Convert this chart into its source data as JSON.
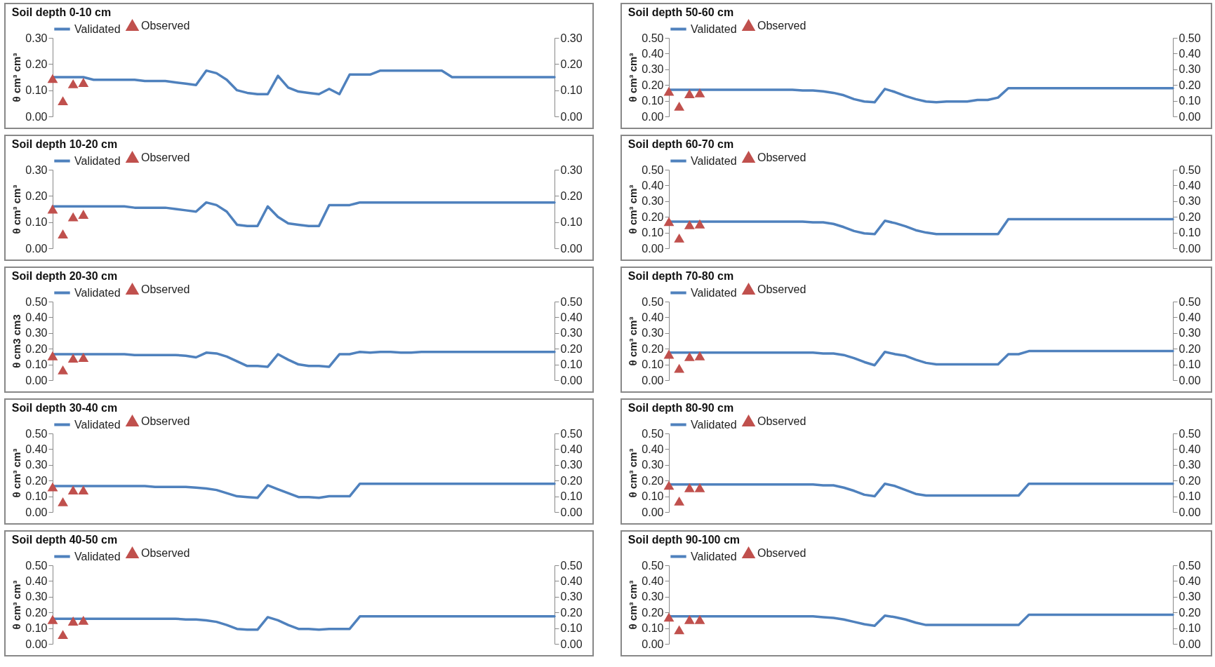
{
  "chart_data": [
    {
      "type": "line",
      "title": "Soil depth 0-10 cm",
      "ylabel": "θ cm³ cm³",
      "legend": "top",
      "categories": [
        null,
        null,
        null,
        null,
        null,
        null,
        null,
        null,
        null,
        null,
        null,
        null,
        null,
        null,
        null,
        null,
        null,
        null,
        null,
        null,
        null,
        null,
        null,
        null,
        null,
        null,
        null,
        null,
        null,
        null,
        null,
        null,
        null,
        null,
        null,
        null,
        null,
        null,
        null,
        null,
        null,
        null,
        null,
        null,
        null,
        null,
        null,
        null,
        null,
        null
      ],
      "ylim": [
        0,
        0.3
      ],
      "yticks": [
        {
          "value": 0,
          "label": "0.00"
        },
        {
          "value": 0.1,
          "label": "0.10"
        },
        {
          "value": 0.2,
          "label": "0.20"
        },
        {
          "value": 0.3,
          "label": "0.30"
        }
      ],
      "y2lim": [
        0,
        0.3
      ],
      "y2ticks": [
        {
          "value": 0,
          "label": "0.00"
        },
        {
          "value": 0.1,
          "label": "0.10"
        },
        {
          "value": 0.2,
          "label": "0.20"
        },
        {
          "value": 0.3,
          "label": "0.30"
        }
      ],
      "series": [
        {
          "name": "Validated",
          "type": "line",
          "color": "#4f81bd",
          "values": [
            0.15,
            0.15,
            0.15,
            0.15,
            0.14,
            0.14,
            0.14,
            0.14,
            0.14,
            0.135,
            0.135,
            0.135,
            0.13,
            0.125,
            0.12,
            0.175,
            0.165,
            0.14,
            0.1,
            0.09,
            0.085,
            0.085,
            0.155,
            0.11,
            0.095,
            0.09,
            0.085,
            0.105,
            0.085,
            0.16,
            0.16,
            0.16,
            0.175,
            0.175,
            0.175,
            0.175,
            0.175,
            0.175,
            0.175,
            0.15,
            0.15,
            0.15,
            0.15,
            0.15,
            0.15,
            0.15,
            0.15,
            0.15,
            0.15,
            0.15
          ]
        },
        {
          "name": "Observed",
          "type": "scatter",
          "marker": "triangle",
          "axis": "y2",
          "color": "#c0504d",
          "values": [
            0.145,
            0.06,
            0.125,
            0.13,
            null,
            null,
            null,
            null,
            null,
            null,
            null,
            null,
            null,
            null,
            null,
            null,
            null,
            null,
            null,
            null,
            null,
            null,
            null,
            null,
            null,
            null,
            null,
            null,
            null,
            null,
            null,
            null,
            null,
            null,
            null,
            null,
            null,
            null,
            null,
            null,
            null,
            null,
            null,
            null,
            null,
            null,
            null,
            null,
            null,
            null
          ]
        }
      ]
    },
    {
      "type": "line",
      "title": "Soil depth 10-20 cm",
      "ylabel": "θ cm³ cm³",
      "legend": "top",
      "categories": [
        null,
        null,
        null,
        null,
        null,
        null,
        null,
        null,
        null,
        null,
        null,
        null,
        null,
        null,
        null,
        null,
        null,
        null,
        null,
        null,
        null,
        null,
        null,
        null,
        null,
        null,
        null,
        null,
        null,
        null,
        null,
        null,
        null,
        null,
        null,
        null,
        null,
        null,
        null,
        null,
        null,
        null,
        null,
        null,
        null,
        null,
        null,
        null,
        null,
        null
      ],
      "ylim": [
        0,
        0.3
      ],
      "yticks": [
        {
          "value": 0,
          "label": "0.00"
        },
        {
          "value": 0.1,
          "label": "0.10"
        },
        {
          "value": 0.2,
          "label": "0.20"
        },
        {
          "value": 0.3,
          "label": "0.30"
        }
      ],
      "y2lim": [
        0,
        0.3
      ],
      "y2ticks": [
        {
          "value": 0,
          "label": "0.00"
        },
        {
          "value": 0.1,
          "label": "0.10"
        },
        {
          "value": 0.2,
          "label": "0.20"
        },
        {
          "value": 0.3,
          "label": "0.30"
        }
      ],
      "series": [
        {
          "name": "Validated",
          "type": "line",
          "color": "#4f81bd",
          "values": [
            0.16,
            0.16,
            0.16,
            0.16,
            0.16,
            0.16,
            0.16,
            0.16,
            0.155,
            0.155,
            0.155,
            0.155,
            0.15,
            0.145,
            0.14,
            0.175,
            0.165,
            0.14,
            0.09,
            0.085,
            0.085,
            0.16,
            0.12,
            0.095,
            0.09,
            0.085,
            0.085,
            0.165,
            0.165,
            0.165,
            0.175,
            0.175,
            0.175,
            0.175,
            0.175,
            0.175,
            0.175,
            0.175,
            0.175,
            0.175,
            0.175,
            0.175,
            0.175,
            0.175,
            0.175,
            0.175,
            0.175,
            0.175,
            0.175,
            0.175
          ]
        },
        {
          "name": "Observed",
          "type": "scatter",
          "marker": "triangle",
          "axis": "y2",
          "color": "#c0504d",
          "values": [
            0.15,
            0.055,
            0.12,
            0.13,
            null,
            null,
            null,
            null,
            null,
            null,
            null,
            null,
            null,
            null,
            null,
            null,
            null,
            null,
            null,
            null,
            null,
            null,
            null,
            null,
            null,
            null,
            null,
            null,
            null,
            null,
            null,
            null,
            null,
            null,
            null,
            null,
            null,
            null,
            null,
            null,
            null,
            null,
            null,
            null,
            null,
            null,
            null,
            null,
            null,
            null
          ]
        }
      ]
    },
    {
      "type": "line",
      "title": "Soil depth 20-30 cm",
      "ylabel": "θ cm3 cm3",
      "legend": "top",
      "categories": [
        null,
        null,
        null,
        null,
        null,
        null,
        null,
        null,
        null,
        null,
        null,
        null,
        null,
        null,
        null,
        null,
        null,
        null,
        null,
        null,
        null,
        null,
        null,
        null,
        null,
        null,
        null,
        null,
        null,
        null,
        null,
        null,
        null,
        null,
        null,
        null,
        null,
        null,
        null,
        null,
        null,
        null,
        null,
        null,
        null,
        null,
        null,
        null,
        null,
        null
      ],
      "ylim": [
        0,
        0.5
      ],
      "yticks": [
        {
          "value": 0,
          "label": "0.00"
        },
        {
          "value": 0.1,
          "label": "0.10"
        },
        {
          "value": 0.2,
          "label": "0.20"
        },
        {
          "value": 0.3,
          "label": "0.30"
        },
        {
          "value": 0.4,
          "label": "0.40"
        },
        {
          "value": 0.5,
          "label": "0.50"
        }
      ],
      "y2lim": [
        0,
        0.5
      ],
      "y2ticks": [
        {
          "value": 0,
          "label": "0.00"
        },
        {
          "value": 0.1,
          "label": "0.10"
        },
        {
          "value": 0.2,
          "label": "0.20"
        },
        {
          "value": 0.3,
          "label": "0.30"
        },
        {
          "value": 0.4,
          "label": "0.40"
        },
        {
          "value": 0.5,
          "label": "0.50"
        }
      ],
      "series": [
        {
          "name": "Validated",
          "type": "line",
          "color": "#4f81bd",
          "values": [
            0.165,
            0.165,
            0.165,
            0.165,
            0.165,
            0.165,
            0.165,
            0.165,
            0.16,
            0.16,
            0.16,
            0.16,
            0.16,
            0.155,
            0.145,
            0.175,
            0.17,
            0.15,
            0.12,
            0.09,
            0.09,
            0.085,
            0.165,
            0.13,
            0.1,
            0.09,
            0.09,
            0.085,
            0.165,
            0.165,
            0.18,
            0.175,
            0.18,
            0.18,
            0.175,
            0.175,
            0.18,
            0.18,
            0.18,
            0.18,
            0.18,
            0.18,
            0.18,
            0.18,
            0.18,
            0.18,
            0.18,
            0.18,
            0.18,
            0.18
          ]
        },
        {
          "name": "Observed",
          "type": "scatter",
          "marker": "triangle",
          "axis": "y2",
          "color": "#c0504d",
          "values": [
            0.155,
            0.065,
            0.14,
            0.145,
            null,
            null,
            null,
            null,
            null,
            null,
            null,
            null,
            null,
            null,
            null,
            null,
            null,
            null,
            null,
            null,
            null,
            null,
            null,
            null,
            null,
            null,
            null,
            null,
            null,
            null,
            null,
            null,
            null,
            null,
            null,
            null,
            null,
            null,
            null,
            null,
            null,
            null,
            null,
            null,
            null,
            null,
            null,
            null,
            null,
            null
          ]
        }
      ]
    },
    {
      "type": "line",
      "title": "Soil depth 30-40 cm",
      "ylabel": "θ cm³ cm³",
      "legend": "top",
      "categories": [
        null,
        null,
        null,
        null,
        null,
        null,
        null,
        null,
        null,
        null,
        null,
        null,
        null,
        null,
        null,
        null,
        null,
        null,
        null,
        null,
        null,
        null,
        null,
        null,
        null,
        null,
        null,
        null,
        null,
        null,
        null,
        null,
        null,
        null,
        null,
        null,
        null,
        null,
        null,
        null,
        null,
        null,
        null,
        null,
        null,
        null,
        null,
        null,
        null,
        null
      ],
      "ylim": [
        0,
        0.5
      ],
      "yticks": [
        {
          "value": 0,
          "label": "0.00"
        },
        {
          "value": 0.1,
          "label": "0.10"
        },
        {
          "value": 0.2,
          "label": "0.20"
        },
        {
          "value": 0.3,
          "label": "0.30"
        },
        {
          "value": 0.4,
          "label": "0.40"
        },
        {
          "value": 0.5,
          "label": "0.50"
        }
      ],
      "y2lim": [
        0,
        0.5
      ],
      "y2ticks": [
        {
          "value": 0,
          "label": "0.00"
        },
        {
          "value": 0.1,
          "label": "0.10"
        },
        {
          "value": 0.2,
          "label": "0.20"
        },
        {
          "value": 0.3,
          "label": "0.30"
        },
        {
          "value": 0.4,
          "label": "0.40"
        },
        {
          "value": 0.5,
          "label": "0.50"
        }
      ],
      "series": [
        {
          "name": "Validated",
          "type": "line",
          "color": "#4f81bd",
          "values": [
            0.165,
            0.165,
            0.165,
            0.165,
            0.165,
            0.165,
            0.165,
            0.165,
            0.165,
            0.165,
            0.16,
            0.16,
            0.16,
            0.16,
            0.155,
            0.15,
            0.14,
            0.12,
            0.1,
            0.095,
            0.09,
            0.17,
            0.145,
            0.12,
            0.095,
            0.095,
            0.09,
            0.1,
            0.1,
            0.1,
            0.18,
            0.18,
            0.18,
            0.18,
            0.18,
            0.18,
            0.18,
            0.18,
            0.18,
            0.18,
            0.18,
            0.18,
            0.18,
            0.18,
            0.18,
            0.18,
            0.18,
            0.18,
            0.18,
            0.18
          ]
        },
        {
          "name": "Observed",
          "type": "scatter",
          "marker": "triangle",
          "axis": "y2",
          "color": "#c0504d",
          "values": [
            0.16,
            0.065,
            0.14,
            0.14,
            null,
            null,
            null,
            null,
            null,
            null,
            null,
            null,
            null,
            null,
            null,
            null,
            null,
            null,
            null,
            null,
            null,
            null,
            null,
            null,
            null,
            null,
            null,
            null,
            null,
            null,
            null,
            null,
            null,
            null,
            null,
            null,
            null,
            null,
            null,
            null,
            null,
            null,
            null,
            null,
            null,
            null,
            null,
            null,
            null,
            null
          ]
        }
      ]
    },
    {
      "type": "line",
      "title": "Soil depth 40-50 cm",
      "ylabel": "θ cm³ cm³",
      "legend": "top",
      "categories": [
        null,
        null,
        null,
        null,
        null,
        null,
        null,
        null,
        null,
        null,
        null,
        null,
        null,
        null,
        null,
        null,
        null,
        null,
        null,
        null,
        null,
        null,
        null,
        null,
        null,
        null,
        null,
        null,
        null,
        null,
        null,
        null,
        null,
        null,
        null,
        null,
        null,
        null,
        null,
        null,
        null,
        null,
        null,
        null,
        null,
        null,
        null,
        null,
        null,
        null
      ],
      "ylim": [
        0,
        0.5
      ],
      "yticks": [
        {
          "value": 0,
          "label": "0.00"
        },
        {
          "value": 0.1,
          "label": "0.10"
        },
        {
          "value": 0.2,
          "label": "0.20"
        },
        {
          "value": 0.3,
          "label": "0.30"
        },
        {
          "value": 0.4,
          "label": "0.40"
        },
        {
          "value": 0.5,
          "label": "0.50"
        }
      ],
      "y2lim": [
        0,
        0.5
      ],
      "y2ticks": [
        {
          "value": 0,
          "label": "0.00"
        },
        {
          "value": 0.1,
          "label": "0.10"
        },
        {
          "value": 0.2,
          "label": "0.20"
        },
        {
          "value": 0.3,
          "label": "0.30"
        },
        {
          "value": 0.4,
          "label": "0.40"
        },
        {
          "value": 0.5,
          "label": "0.50"
        }
      ],
      "series": [
        {
          "name": "Validated",
          "type": "line",
          "color": "#4f81bd",
          "values": [
            0.16,
            0.16,
            0.16,
            0.16,
            0.16,
            0.16,
            0.16,
            0.16,
            0.16,
            0.16,
            0.16,
            0.16,
            0.16,
            0.155,
            0.155,
            0.15,
            0.14,
            0.12,
            0.095,
            0.09,
            0.09,
            0.17,
            0.15,
            0.12,
            0.095,
            0.095,
            0.09,
            0.095,
            0.095,
            0.095,
            0.175,
            0.175,
            0.175,
            0.175,
            0.175,
            0.175,
            0.175,
            0.175,
            0.175,
            0.175,
            0.175,
            0.175,
            0.175,
            0.175,
            0.175,
            0.175,
            0.175,
            0.175,
            0.175,
            0.175
          ]
        },
        {
          "name": "Observed",
          "type": "scatter",
          "marker": "triangle",
          "axis": "y2",
          "color": "#c0504d",
          "values": [
            0.155,
            0.06,
            0.145,
            0.15,
            null,
            null,
            null,
            null,
            null,
            null,
            null,
            null,
            null,
            null,
            null,
            null,
            null,
            null,
            null,
            null,
            null,
            null,
            null,
            null,
            null,
            null,
            null,
            null,
            null,
            null,
            null,
            null,
            null,
            null,
            null,
            null,
            null,
            null,
            null,
            null,
            null,
            null,
            null,
            null,
            null,
            null,
            null,
            null,
            null,
            null
          ]
        }
      ]
    },
    {
      "type": "line",
      "title": "Soil depth 50-60 cm",
      "ylabel": "θ cm³ cm³",
      "legend": "top",
      "categories": [
        null,
        null,
        null,
        null,
        null,
        null,
        null,
        null,
        null,
        null,
        null,
        null,
        null,
        null,
        null,
        null,
        null,
        null,
        null,
        null,
        null,
        null,
        null,
        null,
        null,
        null,
        null,
        null,
        null,
        null,
        null,
        null,
        null,
        null,
        null,
        null,
        null,
        null,
        null,
        null,
        null,
        null,
        null,
        null,
        null,
        null,
        null,
        null,
        null,
        null
      ],
      "ylim": [
        0,
        0.5
      ],
      "yticks": [
        {
          "value": 0,
          "label": "0.00"
        },
        {
          "value": 0.1,
          "label": "0.10"
        },
        {
          "value": 0.2,
          "label": "0.20"
        },
        {
          "value": 0.3,
          "label": "0.30"
        },
        {
          "value": 0.4,
          "label": "0.40"
        },
        {
          "value": 0.5,
          "label": "0.50"
        }
      ],
      "y2lim": [
        0,
        0.5
      ],
      "y2ticks": [
        {
          "value": 0,
          "label": "0.00"
        },
        {
          "value": 0.1,
          "label": "0.10"
        },
        {
          "value": 0.2,
          "label": "0.20"
        },
        {
          "value": 0.3,
          "label": "0.30"
        },
        {
          "value": 0.4,
          "label": "0.40"
        },
        {
          "value": 0.5,
          "label": "0.50"
        }
      ],
      "series": [
        {
          "name": "Validated",
          "type": "line",
          "color": "#4f81bd",
          "values": [
            0.17,
            0.17,
            0.17,
            0.17,
            0.17,
            0.17,
            0.17,
            0.17,
            0.17,
            0.17,
            0.17,
            0.17,
            0.17,
            0.165,
            0.165,
            0.16,
            0.15,
            0.135,
            0.11,
            0.095,
            0.09,
            0.175,
            0.155,
            0.13,
            0.11,
            0.095,
            0.09,
            0.095,
            0.095,
            0.095,
            0.105,
            0.105,
            0.12,
            0.18,
            0.18,
            0.18,
            0.18,
            0.18,
            0.18,
            0.18,
            0.18,
            0.18,
            0.18,
            0.18,
            0.18,
            0.18,
            0.18,
            0.18,
            0.18,
            0.18
          ]
        },
        {
          "name": "Observed",
          "type": "scatter",
          "marker": "triangle",
          "axis": "y2",
          "color": "#c0504d",
          "values": [
            0.16,
            0.065,
            0.145,
            0.15,
            null,
            null,
            null,
            null,
            null,
            null,
            null,
            null,
            null,
            null,
            null,
            null,
            null,
            null,
            null,
            null,
            null,
            null,
            null,
            null,
            null,
            null,
            null,
            null,
            null,
            null,
            null,
            null,
            null,
            null,
            null,
            null,
            null,
            null,
            null,
            null,
            null,
            null,
            null,
            null,
            null,
            null,
            null,
            null,
            null,
            null
          ]
        }
      ]
    },
    {
      "type": "line",
      "title": "Soil depth 60-70 cm",
      "ylabel": "θ cm³ cm³",
      "legend": "top",
      "categories": [
        null,
        null,
        null,
        null,
        null,
        null,
        null,
        null,
        null,
        null,
        null,
        null,
        null,
        null,
        null,
        null,
        null,
        null,
        null,
        null,
        null,
        null,
        null,
        null,
        null,
        null,
        null,
        null,
        null,
        null,
        null,
        null,
        null,
        null,
        null,
        null,
        null,
        null,
        null,
        null,
        null,
        null,
        null,
        null,
        null,
        null,
        null,
        null,
        null,
        null
      ],
      "ylim": [
        0,
        0.5
      ],
      "yticks": [
        {
          "value": 0,
          "label": "0.00"
        },
        {
          "value": 0.1,
          "label": "0.10"
        },
        {
          "value": 0.2,
          "label": "0.20"
        },
        {
          "value": 0.3,
          "label": "0.30"
        },
        {
          "value": 0.4,
          "label": "0.40"
        },
        {
          "value": 0.5,
          "label": "0.50"
        }
      ],
      "y2lim": [
        0,
        0.5
      ],
      "y2ticks": [
        {
          "value": 0,
          "label": "0.00"
        },
        {
          "value": 0.1,
          "label": "0.10"
        },
        {
          "value": 0.2,
          "label": "0.20"
        },
        {
          "value": 0.3,
          "label": "0.30"
        },
        {
          "value": 0.4,
          "label": "0.40"
        },
        {
          "value": 0.5,
          "label": "0.50"
        }
      ],
      "series": [
        {
          "name": "Validated",
          "type": "line",
          "color": "#4f81bd",
          "values": [
            0.17,
            0.17,
            0.17,
            0.17,
            0.17,
            0.17,
            0.17,
            0.17,
            0.17,
            0.17,
            0.17,
            0.17,
            0.17,
            0.17,
            0.165,
            0.165,
            0.155,
            0.135,
            0.11,
            0.095,
            0.09,
            0.175,
            0.16,
            0.14,
            0.115,
            0.1,
            0.09,
            0.09,
            0.09,
            0.09,
            0.09,
            0.09,
            0.09,
            0.185,
            0.185,
            0.185,
            0.185,
            0.185,
            0.185,
            0.185,
            0.185,
            0.185,
            0.185,
            0.185,
            0.185,
            0.185,
            0.185,
            0.185,
            0.185,
            0.185
          ]
        },
        {
          "name": "Observed",
          "type": "scatter",
          "marker": "triangle",
          "axis": "y2",
          "color": "#c0504d",
          "values": [
            0.17,
            0.065,
            0.15,
            0.155,
            null,
            null,
            null,
            null,
            null,
            null,
            null,
            null,
            null,
            null,
            null,
            null,
            null,
            null,
            null,
            null,
            null,
            null,
            null,
            null,
            null,
            null,
            null,
            null,
            null,
            null,
            null,
            null,
            null,
            null,
            null,
            null,
            null,
            null,
            null,
            null,
            null,
            null,
            null,
            null,
            null,
            null,
            null,
            null,
            null,
            null
          ]
        }
      ]
    },
    {
      "type": "line",
      "title": "Soil depth 70-80 cm",
      "ylabel": "θ cm³ cm³",
      "legend": "top",
      "categories": [
        null,
        null,
        null,
        null,
        null,
        null,
        null,
        null,
        null,
        null,
        null,
        null,
        null,
        null,
        null,
        null,
        null,
        null,
        null,
        null,
        null,
        null,
        null,
        null,
        null,
        null,
        null,
        null,
        null,
        null,
        null,
        null,
        null,
        null,
        null,
        null,
        null,
        null,
        null,
        null,
        null,
        null,
        null,
        null,
        null,
        null,
        null,
        null,
        null,
        null
      ],
      "ylim": [
        0,
        0.5
      ],
      "yticks": [
        {
          "value": 0,
          "label": "0.00"
        },
        {
          "value": 0.1,
          "label": "0.10"
        },
        {
          "value": 0.2,
          "label": "0.20"
        },
        {
          "value": 0.3,
          "label": "0.30"
        },
        {
          "value": 0.4,
          "label": "0.40"
        },
        {
          "value": 0.5,
          "label": "0.50"
        }
      ],
      "y2lim": [
        0,
        0.5
      ],
      "y2ticks": [
        {
          "value": 0,
          "label": "0.00"
        },
        {
          "value": 0.1,
          "label": "0.10"
        },
        {
          "value": 0.2,
          "label": "0.20"
        },
        {
          "value": 0.3,
          "label": "0.30"
        },
        {
          "value": 0.4,
          "label": "0.40"
        },
        {
          "value": 0.5,
          "label": "0.50"
        }
      ],
      "series": [
        {
          "name": "Validated",
          "type": "line",
          "color": "#4f81bd",
          "values": [
            0.175,
            0.175,
            0.175,
            0.175,
            0.175,
            0.175,
            0.175,
            0.175,
            0.175,
            0.175,
            0.175,
            0.175,
            0.175,
            0.175,
            0.175,
            0.17,
            0.17,
            0.16,
            0.14,
            0.115,
            0.095,
            0.18,
            0.165,
            0.155,
            0.13,
            0.11,
            0.1,
            0.1,
            0.1,
            0.1,
            0.1,
            0.1,
            0.1,
            0.165,
            0.165,
            0.185,
            0.185,
            0.185,
            0.185,
            0.185,
            0.185,
            0.185,
            0.185,
            0.185,
            0.185,
            0.185,
            0.185,
            0.185,
            0.185,
            0.185
          ]
        },
        {
          "name": "Observed",
          "type": "scatter",
          "marker": "triangle",
          "axis": "y2",
          "color": "#c0504d",
          "values": [
            0.165,
            0.075,
            0.15,
            0.155,
            null,
            null,
            null,
            null,
            null,
            null,
            null,
            null,
            null,
            null,
            null,
            null,
            null,
            null,
            null,
            null,
            null,
            null,
            null,
            null,
            null,
            null,
            null,
            null,
            null,
            null,
            null,
            null,
            null,
            null,
            null,
            null,
            null,
            null,
            null,
            null,
            null,
            null,
            null,
            null,
            null,
            null,
            null,
            null,
            null,
            null
          ]
        }
      ]
    },
    {
      "type": "line",
      "title": "Soil depth 80-90 cm",
      "ylabel": "θ cm³ cm³",
      "legend": "top",
      "categories": [
        null,
        null,
        null,
        null,
        null,
        null,
        null,
        null,
        null,
        null,
        null,
        null,
        null,
        null,
        null,
        null,
        null,
        null,
        null,
        null,
        null,
        null,
        null,
        null,
        null,
        null,
        null,
        null,
        null,
        null,
        null,
        null,
        null,
        null,
        null,
        null,
        null,
        null,
        null,
        null,
        null,
        null,
        null,
        null,
        null,
        null,
        null,
        null,
        null,
        null
      ],
      "ylim": [
        0,
        0.5
      ],
      "yticks": [
        {
          "value": 0,
          "label": "0.00"
        },
        {
          "value": 0.1,
          "label": "0.10"
        },
        {
          "value": 0.2,
          "label": "0.20"
        },
        {
          "value": 0.3,
          "label": "0.30"
        },
        {
          "value": 0.4,
          "label": "0.40"
        },
        {
          "value": 0.5,
          "label": "0.50"
        }
      ],
      "y2lim": [
        0,
        0.5
      ],
      "y2ticks": [
        {
          "value": 0,
          "label": "0.00"
        },
        {
          "value": 0.1,
          "label": "0.10"
        },
        {
          "value": 0.2,
          "label": "0.20"
        },
        {
          "value": 0.3,
          "label": "0.30"
        },
        {
          "value": 0.4,
          "label": "0.40"
        },
        {
          "value": 0.5,
          "label": "0.50"
        }
      ],
      "series": [
        {
          "name": "Validated",
          "type": "line",
          "color": "#4f81bd",
          "values": [
            0.175,
            0.175,
            0.175,
            0.175,
            0.175,
            0.175,
            0.175,
            0.175,
            0.175,
            0.175,
            0.175,
            0.175,
            0.175,
            0.175,
            0.175,
            0.17,
            0.17,
            0.155,
            0.135,
            0.11,
            0.1,
            0.18,
            0.165,
            0.14,
            0.115,
            0.105,
            0.105,
            0.105,
            0.105,
            0.105,
            0.105,
            0.105,
            0.105,
            0.105,
            0.105,
            0.18,
            0.18,
            0.18,
            0.18,
            0.18,
            0.18,
            0.18,
            0.18,
            0.18,
            0.18,
            0.18,
            0.18,
            0.18,
            0.18,
            0.18
          ]
        },
        {
          "name": "Observed",
          "type": "scatter",
          "marker": "triangle",
          "axis": "y2",
          "color": "#c0504d",
          "values": [
            0.17,
            0.07,
            0.155,
            0.155,
            null,
            null,
            null,
            null,
            null,
            null,
            null,
            null,
            null,
            null,
            null,
            null,
            null,
            null,
            null,
            null,
            null,
            null,
            null,
            null,
            null,
            null,
            null,
            null,
            null,
            null,
            null,
            null,
            null,
            null,
            null,
            null,
            null,
            null,
            null,
            null,
            null,
            null,
            null,
            null,
            null,
            null,
            null,
            null,
            null,
            null
          ]
        }
      ]
    },
    {
      "type": "line",
      "title": "Soil depth 90-100 cm",
      "ylabel": "θ cm³ cm³",
      "legend": "top",
      "categories": [
        null,
        null,
        null,
        null,
        null,
        null,
        null,
        null,
        null,
        null,
        null,
        null,
        null,
        null,
        null,
        null,
        null,
        null,
        null,
        null,
        null,
        null,
        null,
        null,
        null,
        null,
        null,
        null,
        null,
        null,
        null,
        null,
        null,
        null,
        null,
        null,
        null,
        null,
        null,
        null,
        null,
        null,
        null,
        null,
        null,
        null,
        null,
        null,
        null,
        null
      ],
      "ylim": [
        0,
        0.5
      ],
      "yticks": [
        {
          "value": 0,
          "label": "0.00"
        },
        {
          "value": 0.1,
          "label": "0.10"
        },
        {
          "value": 0.2,
          "label": "0.20"
        },
        {
          "value": 0.3,
          "label": "0.30"
        },
        {
          "value": 0.4,
          "label": "0.40"
        },
        {
          "value": 0.5,
          "label": "0.50"
        }
      ],
      "y2lim": [
        0,
        0.5
      ],
      "y2ticks": [
        {
          "value": 0,
          "label": "0.00"
        },
        {
          "value": 0.1,
          "label": "0.10"
        },
        {
          "value": 0.2,
          "label": "0.20"
        },
        {
          "value": 0.3,
          "label": "0.30"
        },
        {
          "value": 0.4,
          "label": "0.40"
        },
        {
          "value": 0.5,
          "label": "0.50"
        }
      ],
      "series": [
        {
          "name": "Validated",
          "type": "line",
          "color": "#4f81bd",
          "values": [
            0.175,
            0.175,
            0.175,
            0.175,
            0.175,
            0.175,
            0.175,
            0.175,
            0.175,
            0.175,
            0.175,
            0.175,
            0.175,
            0.175,
            0.175,
            0.17,
            0.165,
            0.155,
            0.14,
            0.125,
            0.115,
            0.18,
            0.17,
            0.155,
            0.135,
            0.12,
            0.12,
            0.12,
            0.12,
            0.12,
            0.12,
            0.12,
            0.12,
            0.12,
            0.12,
            0.185,
            0.185,
            0.185,
            0.185,
            0.185,
            0.185,
            0.185,
            0.185,
            0.185,
            0.185,
            0.185,
            0.185,
            0.185,
            0.185,
            0.185
          ]
        },
        {
          "name": "Observed",
          "type": "scatter",
          "marker": "triangle",
          "axis": "y2",
          "color": "#c0504d",
          "values": [
            0.17,
            0.09,
            0.155,
            0.155,
            null,
            null,
            null,
            null,
            null,
            null,
            null,
            null,
            null,
            null,
            null,
            null,
            null,
            null,
            null,
            null,
            null,
            null,
            null,
            null,
            null,
            null,
            null,
            null,
            null,
            null,
            null,
            null,
            null,
            null,
            null,
            null,
            null,
            null,
            null,
            null,
            null,
            null,
            null,
            null,
            null,
            null,
            null,
            null,
            null,
            null
          ]
        }
      ]
    }
  ]
}
